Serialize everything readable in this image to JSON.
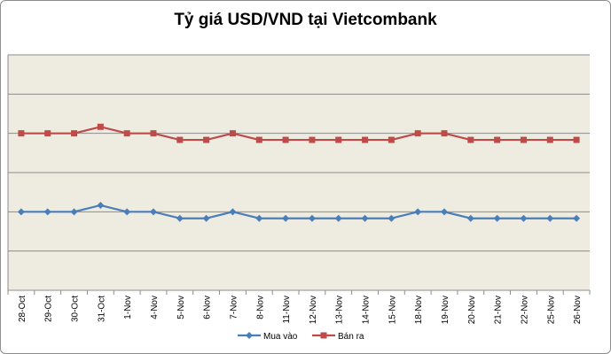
{
  "chart_data": {
    "type": "line",
    "title": "Tỷ giá USD/VND tại Vietcombank",
    "xlabel": "",
    "ylabel": "",
    "categories": [
      "28-Oct",
      "29-Oct",
      "30-Oct",
      "31-Oct",
      "1-Nov",
      "4-Nov",
      "5-Nov",
      "6-Nov",
      "7-Nov",
      "8-Nov",
      "11-Nov",
      "12-Nov",
      "13-Nov",
      "14-Nov",
      "15-Nov",
      "18-Nov",
      "19-Nov",
      "20-Nov",
      "21-Nov",
      "22-Nov",
      "25-Nov",
      "26-Nov"
    ],
    "series": [
      {
        "name": "Mua vào",
        "color": "#4a7ebb",
        "marker": "diamond",
        "values": [
          21080,
          21080,
          21080,
          21085,
          21080,
          21080,
          21075,
          21075,
          21080,
          21075,
          21075,
          21075,
          21075,
          21075,
          21075,
          21080,
          21080,
          21075,
          21075,
          21075,
          21075,
          21075
        ]
      },
      {
        "name": "Bán ra",
        "color": "#be4b48",
        "marker": "square",
        "values": [
          21140,
          21140,
          21140,
          21145,
          21140,
          21140,
          21135,
          21135,
          21140,
          21135,
          21135,
          21135,
          21135,
          21135,
          21135,
          21140,
          21140,
          21135,
          21135,
          21135,
          21135,
          21135
        ]
      }
    ],
    "ylim": [
      21020,
      21200
    ],
    "y_ticks_shown": false,
    "grid": true,
    "plot_background": "#eeece1",
    "legend_position": "bottom"
  }
}
